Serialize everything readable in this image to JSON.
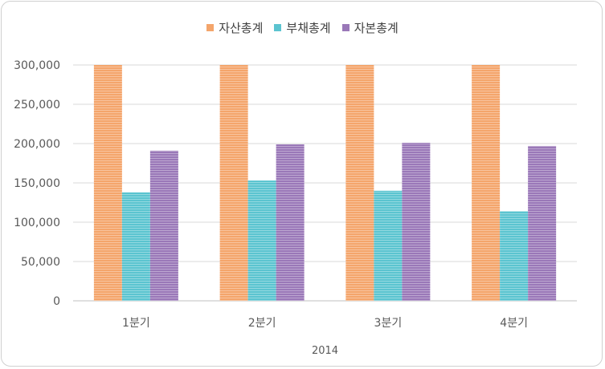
{
  "chart_data": {
    "type": "bar",
    "categories": [
      "1분기",
      "2분기",
      "3분기",
      "4분기"
    ],
    "x_group_label": "2014",
    "series": [
      {
        "name": "자산총계",
        "color": "#F4A56B",
        "values": [
          300000,
          300000,
          300000,
          300000
        ]
      },
      {
        "name": "부채총계",
        "color": "#5BC4D0",
        "values": [
          138000,
          153000,
          140000,
          114000
        ]
      },
      {
        "name": "자본총계",
        "color": "#9A78B8",
        "values": [
          191000,
          199000,
          201000,
          197000
        ]
      }
    ],
    "ylim": [
      0,
      300000
    ],
    "yticks": [
      "0",
      "50,000",
      "100,000",
      "150,000",
      "200,000",
      "250,000",
      "300,000"
    ],
    "grid": true,
    "legend_position": "top"
  }
}
